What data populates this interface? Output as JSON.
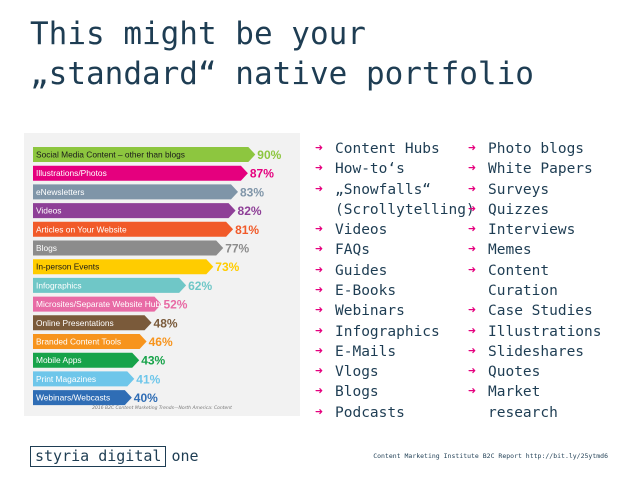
{
  "title": {
    "line1": "This might be your",
    "line2": "„standard“ native portfolio"
  },
  "chart_data": {
    "type": "bar",
    "orientation": "horizontal",
    "categories": [
      "Social Media Content – other than blogs",
      "Illustrations/Photos",
      "eNewsletters",
      "Videos",
      "Articles on Your Website",
      "Blogs",
      "In-person Events",
      "Infographics",
      "Microsites/Separate Website Hubs",
      "Online Presentations",
      "Branded Content Tools",
      "Mobile Apps",
      "Print Magazines",
      "Webinars/Webcasts"
    ],
    "values": [
      90,
      87,
      83,
      82,
      81,
      77,
      73,
      62,
      52,
      48,
      46,
      43,
      41,
      40
    ],
    "value_labels": [
      "90%",
      "87%",
      "83%",
      "82%",
      "81%",
      "77%",
      "73%",
      "62%",
      "52%",
      "48%",
      "46%",
      "43%",
      "41%",
      "40%"
    ],
    "colors": [
      "#8dc63f",
      "#e5007e",
      "#7f95a8",
      "#8e3f97",
      "#f15a29",
      "#8c8c8c",
      "#ffcc00",
      "#6fc7c7",
      "#e86ba5",
      "#7a5a3a",
      "#f7941d",
      "#17a34a",
      "#6ec6ea",
      "#2f6db5"
    ],
    "xlim": [
      0,
      100
    ],
    "source": "2016 B2C Content Marketing Trends—North America: Content"
  },
  "left_list": [
    "Content Hubs",
    "How-to‘s",
    "„Snowfalls“",
    "(Scrollytelling)",
    "Videos",
    "FAQs",
    "Guides",
    "E-Books",
    "Webinars",
    "Infographics",
    "E-Mails",
    "Vlogs",
    "Blogs",
    "Podcasts"
  ],
  "left_list_arrows": [
    true,
    true,
    true,
    false,
    true,
    true,
    true,
    true,
    true,
    true,
    true,
    true,
    true,
    true
  ],
  "right_list": [
    "Photo blogs",
    "White Papers",
    "Surveys",
    "Quizzes",
    "Interviews",
    "Memes",
    "Content",
    "Curation",
    "Case Studies",
    "Illustrations",
    "Slideshares",
    "Quotes",
    "Market",
    "research"
  ],
  "right_list_arrows": [
    true,
    true,
    true,
    true,
    true,
    true,
    true,
    false,
    true,
    true,
    true,
    true,
    true,
    false
  ],
  "arrow_glyph": "➜",
  "logo": {
    "box_text": "styria digital",
    "suffix": "one"
  },
  "footer": "Content Marketing Institute B2C Report http://bit.ly/25ytmd6"
}
